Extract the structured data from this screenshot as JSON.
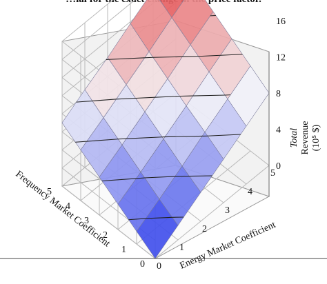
{
  "caption": "…ial for the exact change in the price factor.",
  "chart_data": {
    "type": "surface3d",
    "x_axis": {
      "label": "Energy Market Coefficient",
      "ticks": [
        "0",
        "1",
        "2",
        "3",
        "4",
        "5"
      ]
    },
    "y_axis": {
      "label": "Frequency Market Coefficient",
      "ticks": [
        "0",
        "1",
        "2",
        "3",
        "4",
        "5"
      ]
    },
    "z_axis": {
      "label_line1": "Total",
      "label_line2": "Revenue",
      "label_line3": "(10⁵ $)",
      "ticks": [
        "0",
        "4",
        "8",
        "12",
        "16"
      ],
      "range": [
        0,
        16
      ]
    },
    "colormap": {
      "low": "#1a2be8",
      "mid": "#f4f4f8",
      "high": "#e02020"
    },
    "x": [
      0,
      1,
      2,
      3,
      4,
      5
    ],
    "y": [
      0,
      1,
      2,
      3,
      4,
      5
    ],
    "z": [
      [
        0.0,
        1.6,
        3.2,
        4.8,
        6.4,
        8.0
      ],
      [
        1.4,
        2.9,
        4.5,
        6.2,
        7.8,
        9.4
      ],
      [
        2.8,
        4.3,
        5.9,
        7.5,
        9.2,
        10.8
      ],
      [
        4.2,
        5.7,
        7.3,
        8.9,
        10.6,
        12.2
      ],
      [
        5.6,
        7.1,
        8.7,
        10.3,
        12.0,
        13.6
      ],
      [
        7.0,
        8.6,
        10.1,
        11.8,
        13.4,
        15.0
      ]
    ],
    "contour_levels": [
      2,
      4,
      6,
      8,
      10,
      12,
      14
    ],
    "grid": true
  }
}
